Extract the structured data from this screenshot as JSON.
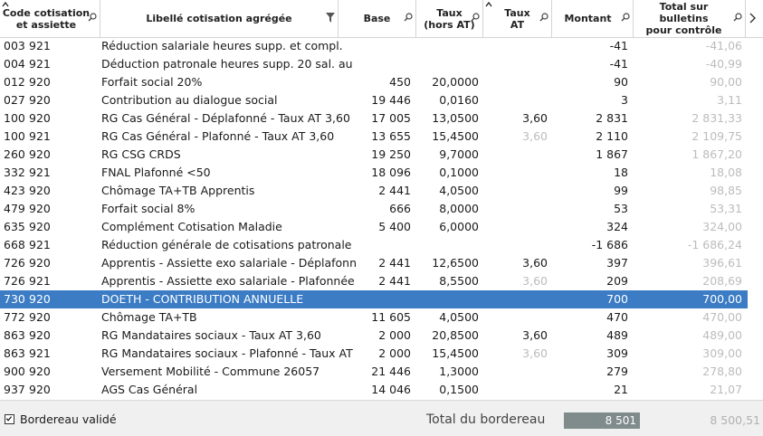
{
  "columns": {
    "code": "Code cotisation\net assiette",
    "libelle": "Libellé cotisation agrégée",
    "base": "Base",
    "taux": "Taux\n(hors AT)",
    "taux_at": "Taux\nAT",
    "montant": "Montant",
    "total": "Total sur bulletins\npour contrôle"
  },
  "icons": {
    "sort": "sort-ascending-icon",
    "search": "magnifier-icon",
    "filter": "funnel-icon",
    "scroll_right": "chevron-right-icon"
  },
  "colors": {
    "selection": "#3b7cc4",
    "muted": "#bcbcbc",
    "total_box": "#808c8c"
  },
  "rows": [
    {
      "c1": "003",
      "c2": "921",
      "lib": "Réduction salariale heures supp. et compl.",
      "base": "",
      "taux": "",
      "tat": "",
      "tat_muted": false,
      "mont": "-41",
      "tot": "-41,06"
    },
    {
      "c1": "004",
      "c2": "921",
      "lib": "Déduction patronale heures supp. 20 sal. au",
      "base": "",
      "taux": "",
      "tat": "",
      "tat_muted": false,
      "mont": "-41",
      "tot": "-40,99"
    },
    {
      "c1": "012",
      "c2": "920",
      "lib": "Forfait social 20%",
      "base": "450",
      "taux": "20,0000",
      "tat": "",
      "tat_muted": false,
      "mont": "90",
      "tot": "90,00"
    },
    {
      "c1": "027",
      "c2": "920",
      "lib": "Contribution au dialogue social",
      "base": "19 446",
      "taux": "0,0160",
      "tat": "",
      "tat_muted": false,
      "mont": "3",
      "tot": "3,11"
    },
    {
      "c1": "100",
      "c2": "920",
      "lib": "RG Cas Général - Déplafonné - Taux AT 3,60",
      "base": "17 005",
      "taux": "13,0500",
      "tat": "3,60",
      "tat_muted": false,
      "mont": "2 831",
      "tot": "2 831,33"
    },
    {
      "c1": "100",
      "c2": "921",
      "lib": "RG Cas Général - Plafonné - Taux AT 3,60",
      "base": "13 655",
      "taux": "15,4500",
      "tat": "3,60",
      "tat_muted": true,
      "mont": "2 110",
      "tot": "2 109,75"
    },
    {
      "c1": "260",
      "c2": "920",
      "lib": "RG CSG CRDS",
      "base": "19 250",
      "taux": "9,7000",
      "tat": "",
      "tat_muted": false,
      "mont": "1 867",
      "tot": "1 867,20"
    },
    {
      "c1": "332",
      "c2": "921",
      "lib": "FNAL Plafonné <50",
      "base": "18 096",
      "taux": "0,1000",
      "tat": "",
      "tat_muted": false,
      "mont": "18",
      "tot": "18,08"
    },
    {
      "c1": "423",
      "c2": "920",
      "lib": "Chômage TA+TB Apprentis",
      "base": "2 441",
      "taux": "4,0500",
      "tat": "",
      "tat_muted": false,
      "mont": "99",
      "tot": "98,85"
    },
    {
      "c1": "479",
      "c2": "920",
      "lib": "Forfait social 8%",
      "base": "666",
      "taux": "8,0000",
      "tat": "",
      "tat_muted": false,
      "mont": "53",
      "tot": "53,31"
    },
    {
      "c1": "635",
      "c2": "920",
      "lib": "Complément Cotisation Maladie",
      "base": "5 400",
      "taux": "6,0000",
      "tat": "",
      "tat_muted": false,
      "mont": "324",
      "tot": "324,00"
    },
    {
      "c1": "668",
      "c2": "921",
      "lib": "Réduction générale de cotisations patronale",
      "base": "",
      "taux": "",
      "tat": "",
      "tat_muted": false,
      "mont": "-1 686",
      "tot": "-1 686,24"
    },
    {
      "c1": "726",
      "c2": "920",
      "lib": "Apprentis - Assiette exo salariale - Déplafonn",
      "base": "2 441",
      "taux": "12,6500",
      "tat": "3,60",
      "tat_muted": false,
      "mont": "397",
      "tot": "396,61"
    },
    {
      "c1": "726",
      "c2": "921",
      "lib": "Apprentis - Assiette exo salariale - Plafonnée",
      "base": "2 441",
      "taux": "8,5500",
      "tat": "3,60",
      "tat_muted": true,
      "mont": "209",
      "tot": "208,69"
    },
    {
      "c1": "730",
      "c2": "920",
      "lib": "DOETH - CONTRIBUTION ANNUELLE",
      "base": "",
      "taux": "",
      "tat": "",
      "tat_muted": false,
      "mont": "700",
      "tot": "700,00",
      "selected": true
    },
    {
      "c1": "772",
      "c2": "920",
      "lib": "Chômage TA+TB",
      "base": "11 605",
      "taux": "4,0500",
      "tat": "",
      "tat_muted": false,
      "mont": "470",
      "tot": "470,00"
    },
    {
      "c1": "863",
      "c2": "920",
      "lib": "RG Mandataires sociaux - Taux AT 3,60",
      "base": "2 000",
      "taux": "20,8500",
      "tat": "3,60",
      "tat_muted": false,
      "mont": "489",
      "tot": "489,00"
    },
    {
      "c1": "863",
      "c2": "921",
      "lib": "RG Mandataires sociaux - Plafonné - Taux AT",
      "base": "2 000",
      "taux": "15,4500",
      "tat": "3,60",
      "tat_muted": true,
      "mont": "309",
      "tot": "309,00"
    },
    {
      "c1": "900",
      "c2": "920",
      "lib": "Versement Mobilité - Commune 26057",
      "base": "21 446",
      "taux": "1,3000",
      "tat": "",
      "tat_muted": false,
      "mont": "279",
      "tot": "278,80"
    },
    {
      "c1": "937",
      "c2": "920",
      "lib": "AGS Cas Général",
      "base": "14 046",
      "taux": "0,1500",
      "tat": "",
      "tat_muted": false,
      "mont": "21",
      "tot": "21,07"
    }
  ],
  "footer": {
    "checkbox_label": "Bordereau validé",
    "checked": true,
    "total_label": "Total du bordereau",
    "total_value": "8 501",
    "total_control": "8 500,51"
  }
}
